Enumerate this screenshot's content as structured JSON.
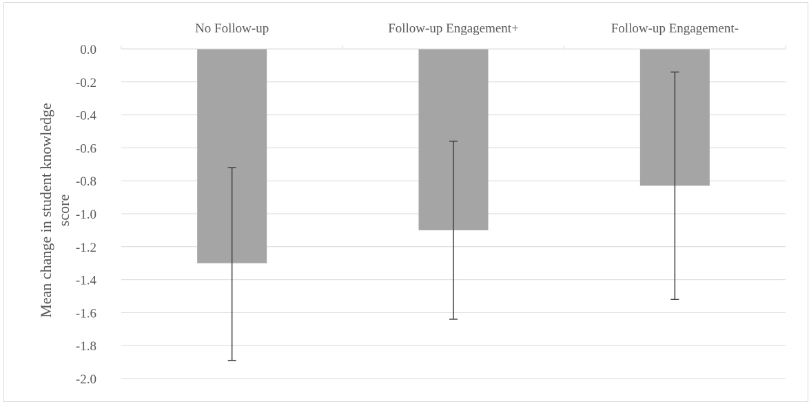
{
  "chart_data": {
    "type": "bar",
    "categories": [
      "No Follow-up",
      "Follow-up Engagement+",
      "Follow-up Engagement-"
    ],
    "values": [
      -1.3,
      -1.1,
      -0.83
    ],
    "error_bars": [
      {
        "low": -1.89,
        "high": -0.72
      },
      {
        "low": -1.64,
        "high": -0.56
      },
      {
        "low": -1.52,
        "high": -0.14
      }
    ],
    "title": "",
    "xlabel": "",
    "ylabel": "Mean change in student knowledge score",
    "ylim": [
      -2.0,
      0.0
    ],
    "yticks": [
      "0.0",
      "-0.2",
      "-0.4",
      "-0.6",
      "-0.8",
      "-1.0",
      "-1.2",
      "-1.4",
      "-1.6",
      "-1.8",
      "-2.0"
    ],
    "category_axis_position": "top",
    "grid": true,
    "legend": "none",
    "colors": {
      "bar": "#a5a5a5",
      "error_bar": "#404040",
      "grid": "#d9d9d9",
      "text": "#595959"
    }
  }
}
